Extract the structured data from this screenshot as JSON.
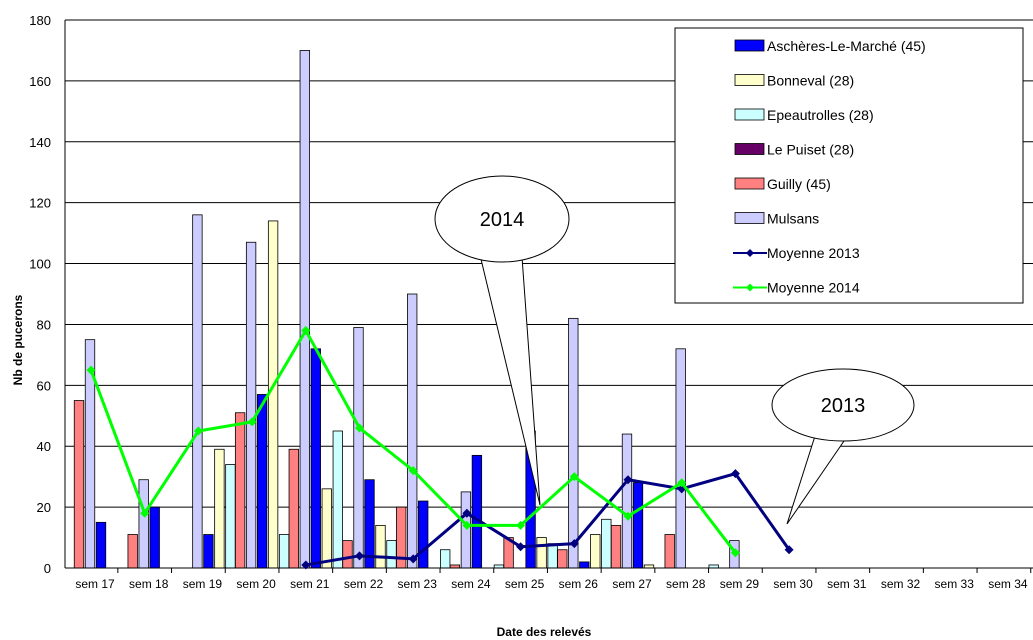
{
  "chart_data": {
    "type": "bar",
    "xlabel": "Date des relevés",
    "ylabel": "Nb de pucerons",
    "ylim": [
      0,
      180
    ],
    "yticks": [
      0,
      20,
      40,
      60,
      80,
      100,
      120,
      140,
      160,
      180
    ],
    "grid": true,
    "legend_position": "top-right",
    "categories": [
      "sem 17",
      "sem 18",
      "sem 19",
      "sem 20",
      "sem 21",
      "sem 22",
      "sem 23",
      "sem 24",
      "sem 25",
      "sem 26",
      "sem 27",
      "sem 28",
      "sem 29",
      "sem 30",
      "sem 31",
      "sem 32",
      "sem 33",
      "sem 34"
    ],
    "series": [
      {
        "name": "Aschères-Le-Marché (45)",
        "kind": "bar",
        "color": "#0000ff",
        "values": [
          15,
          20,
          11,
          57,
          72,
          29,
          22,
          37,
          45,
          2,
          28,
          null,
          null,
          null,
          null,
          null,
          null,
          null
        ]
      },
      {
        "name": "Bonneval (28)",
        "kind": "bar",
        "color": "#ffffcc",
        "values": [
          null,
          null,
          39,
          114,
          26,
          14,
          null,
          null,
          10,
          11,
          1,
          null,
          null,
          null,
          null,
          null,
          null,
          null
        ]
      },
      {
        "name": "Epeautrolles (28)",
        "kind": "bar",
        "color": "#ccffff",
        "values": [
          null,
          null,
          34,
          11,
          45,
          9,
          6,
          1,
          8,
          16,
          null,
          1,
          null,
          null,
          null,
          null,
          null,
          null
        ]
      },
      {
        "name": "Le Puiset (28)",
        "kind": "bar",
        "color": "#660066",
        "values": [
          null,
          null,
          null,
          null,
          null,
          null,
          null,
          null,
          null,
          null,
          null,
          null,
          null,
          null,
          null,
          null,
          null,
          null
        ]
      },
      {
        "name": "Guilly (45)",
        "kind": "bar",
        "color": "#ff8080",
        "values": [
          55,
          11,
          null,
          51,
          39,
          9,
          20,
          1,
          10,
          6,
          14,
          11,
          null,
          null,
          null,
          null,
          null,
          null
        ]
      },
      {
        "name": "Mulsans",
        "kind": "bar",
        "color": "#ccccff",
        "values": [
          75,
          29,
          116,
          107,
          170,
          79,
          90,
          25,
          null,
          82,
          44,
          72,
          9,
          null,
          null,
          null,
          null,
          null
        ]
      },
      {
        "name": "Moyenne 2013",
        "kind": "line",
        "color": "#000080",
        "values": [
          null,
          null,
          null,
          null,
          1,
          4,
          3,
          18,
          7,
          8,
          29,
          26,
          31,
          6,
          null,
          null,
          null,
          null
        ]
      },
      {
        "name": "Moyenne 2014",
        "kind": "line",
        "color": "#00ff00",
        "values": [
          65,
          18,
          45,
          48,
          78,
          46,
          32,
          14,
          14,
          30,
          17,
          28,
          5,
          null,
          null,
          null,
          null,
          null
        ]
      }
    ],
    "annotations": [
      {
        "text": "2014"
      },
      {
        "text": "2013"
      }
    ]
  }
}
